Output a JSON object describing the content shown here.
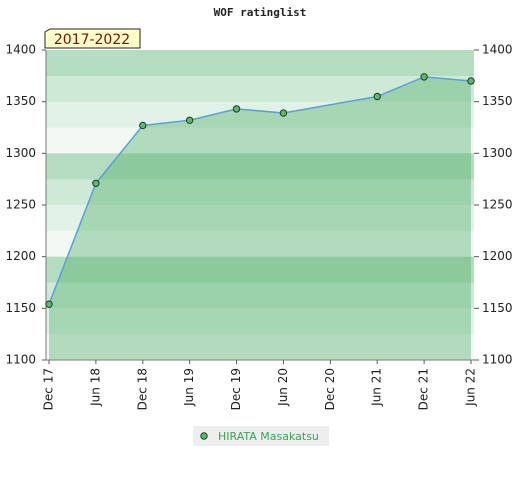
{
  "chart_data": {
    "type": "line",
    "title": "WOF ratinglist",
    "badge": "2017-2022",
    "xticks": [
      "Dec 17",
      "Jun 18",
      "Dec 18",
      "Jun 19",
      "Dec 19",
      "Jun 20",
      "Dec 20",
      "Jun 21",
      "Dec 21",
      "Jun 22"
    ],
    "x": [
      "Dec 17",
      "Jun 18",
      "Dec 18",
      "Jun 19",
      "Dec 19",
      "Jun 20",
      "Jun 21",
      "Dec 21",
      "Jun 22"
    ],
    "series": [
      {
        "name": "HIRATA Masakatsu",
        "color": "#5aa0d8",
        "marker_color": "#5cb870",
        "values": [
          1154,
          1271,
          1327,
          1332,
          1343,
          1339,
          1355,
          1374,
          1370
        ]
      }
    ],
    "ylim": [
      1100,
      1400
    ],
    "yticks": [
      1100,
      1150,
      1200,
      1250,
      1300,
      1350,
      1400
    ],
    "y2lim": [
      1100,
      1400
    ],
    "y2ticks": [
      1100,
      1150,
      1200,
      1250,
      1300,
      1350,
      1400
    ],
    "legend": "bottom"
  }
}
